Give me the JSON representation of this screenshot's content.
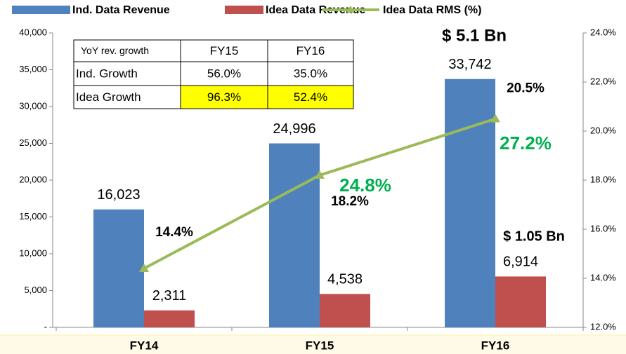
{
  "chart_data": {
    "type": "bar_line",
    "categories": [
      "FY14",
      "FY15",
      "FY16"
    ],
    "series": [
      {
        "name": "Ind. Data Revenue",
        "color": "#4f81bd",
        "values": [
          16023,
          24996,
          33742
        ],
        "value_labels": [
          "16,023",
          "24,996",
          "33,742"
        ]
      },
      {
        "name": "Idea Data Revenue",
        "color": "#c0504d",
        "values": [
          2311,
          4538,
          6914
        ],
        "value_labels": [
          "2,311",
          "4,538",
          "6,914"
        ]
      },
      {
        "name": "Idea Data RMS (%)",
        "color": "#9bbb59",
        "axis": "y2",
        "values": [
          14.4,
          18.2,
          20.5
        ],
        "value_labels": [
          "14.4%",
          "18.2%",
          "20.5%"
        ]
      }
    ],
    "ylim": [
      0,
      40000
    ],
    "yticks": [
      {
        "value": 0,
        "label": "-"
      },
      {
        "value": 5000,
        "label": "5,000"
      },
      {
        "value": 10000,
        "label": "10,000"
      },
      {
        "value": 15000,
        "label": "15,000"
      },
      {
        "value": 20000,
        "label": "20,000"
      },
      {
        "value": 25000,
        "label": "25,000"
      },
      {
        "value": 30000,
        "label": "30,000"
      },
      {
        "value": 35000,
        "label": "35,000"
      },
      {
        "value": 40000,
        "label": "40,000"
      }
    ],
    "y2lim": [
      12,
      24
    ],
    "y2ticks": [
      {
        "value": 12,
        "label": "12.0%"
      },
      {
        "value": 14,
        "label": "14.0%"
      },
      {
        "value": 16,
        "label": "16.0%"
      },
      {
        "value": 18,
        "label": "18.0%"
      },
      {
        "value": 20,
        "label": "20.0%"
      },
      {
        "value": 22,
        "label": "22.0%"
      },
      {
        "value": 24,
        "label": "24.0%"
      }
    ],
    "annotations": [
      {
        "text": "$ 5.1 Bn"
      },
      {
        "text": "$ 1.05 Bn"
      },
      {
        "text": "24.8%"
      },
      {
        "text": "27.2%"
      }
    ],
    "table": {
      "header": [
        "YoY rev. growth",
        "FY15",
        "FY16"
      ],
      "rows": [
        [
          "Ind. Growth",
          "56.0%",
          "35.0%"
        ],
        [
          "Idea Growth",
          "96.3%",
          "52.4%"
        ]
      ]
    }
  }
}
